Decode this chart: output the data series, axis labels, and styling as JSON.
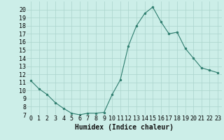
{
  "x": [
    0,
    1,
    2,
    3,
    4,
    5,
    6,
    7,
    8,
    9,
    10,
    11,
    12,
    13,
    14,
    15,
    16,
    17,
    18,
    19,
    20,
    21,
    22,
    23
  ],
  "y": [
    11.2,
    10.2,
    9.5,
    8.5,
    7.8,
    7.2,
    7.0,
    7.2,
    7.2,
    7.3,
    9.5,
    11.3,
    15.5,
    18.0,
    19.5,
    20.3,
    18.5,
    17.0,
    17.2,
    15.2,
    14.0,
    12.8,
    12.5,
    12.2
  ],
  "line_color": "#2e7d6e",
  "marker": "o",
  "marker_size": 2,
  "bg_color": "#cceee8",
  "grid_color": "#aad4cc",
  "xlabel": "Humidex (Indice chaleur)",
  "ylim": [
    7,
    21
  ],
  "xlim": [
    -0.5,
    23.5
  ],
  "yticks": [
    7,
    8,
    9,
    10,
    11,
    12,
    13,
    14,
    15,
    16,
    17,
    18,
    19,
    20
  ],
  "xticks": [
    0,
    1,
    2,
    3,
    4,
    5,
    6,
    7,
    8,
    9,
    10,
    11,
    12,
    13,
    14,
    15,
    16,
    17,
    18,
    19,
    20,
    21,
    22,
    23
  ],
  "xlabel_fontsize": 7,
  "tick_fontsize": 6
}
